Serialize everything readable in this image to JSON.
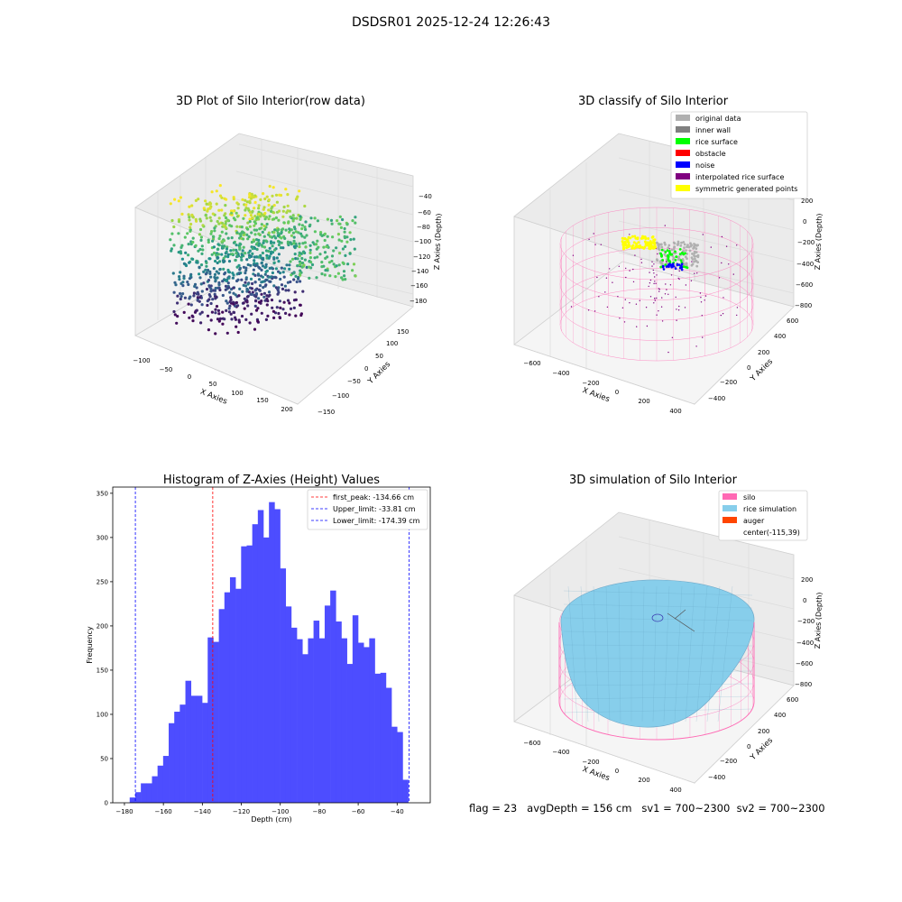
{
  "suptitle": "DSDSR01 2025-12-24 12:26:43",
  "footer": {
    "flag": "flag = 23",
    "avg_depth": "avgDepth = 156 cm",
    "sv1": "sv1 = 700~2300",
    "sv2": "sv2 = 700~2300"
  },
  "colors": {
    "histogram_bar": "#4d4dff",
    "first_peak_line": "#ff0000",
    "limit_line": "#0000ff",
    "silo": "#ff69b4",
    "rice_simulation": "#87ceeb",
    "auger": "#ff4500"
  },
  "chart_data": [
    {
      "type": "scatter",
      "subtype": "3d-scatter",
      "title": "3D Plot of Silo Interior(row data)",
      "xlabel": "X Axies",
      "ylabel": "Y Axies",
      "zlabel": "Z Axies (Depth)",
      "x_ticks": [
        "−100",
        "−50",
        "0",
        "50",
        "100",
        "150",
        "200"
      ],
      "y_ticks": [
        "150",
        "100",
        "50",
        "0",
        "−50",
        "−100",
        "−150"
      ],
      "z_ticks": [
        "−40",
        "−60",
        "−80",
        "−100",
        "−120",
        "−140",
        "−160",
        "−180"
      ],
      "colormap": "viridis"
    },
    {
      "type": "scatter",
      "subtype": "3d-scatter",
      "title": "3D classify of Silo Interior",
      "xlabel": "X Axies",
      "ylabel": "Y Axies",
      "zlabel": "Z Axies (Depth)",
      "x_ticks": [
        "−600",
        "−400",
        "−200",
        "0",
        "200",
        "400"
      ],
      "y_ticks": [
        "600",
        "400",
        "200",
        "0",
        "−200",
        "−400"
      ],
      "z_ticks": [
        "200",
        "0",
        "−200",
        "−400",
        "−600",
        "−800"
      ],
      "legend": [
        {
          "label": "original data",
          "color": "#b0b0b0"
        },
        {
          "label": "inner wall",
          "color": "#808080"
        },
        {
          "label": "rice surface",
          "color": "#00ff00"
        },
        {
          "label": "obstacle",
          "color": "#ff0000"
        },
        {
          "label": "noise",
          "color": "#0000ff"
        },
        {
          "label": "interpolated rice surface",
          "color": "#800080"
        },
        {
          "label": "symmetric generated points",
          "color": "#ffff00"
        }
      ]
    },
    {
      "type": "bar",
      "subtype": "histogram",
      "title": "Histogram of Z-Axies (Height) Values",
      "xlabel": "Depth (cm)",
      "ylabel": "Frequency",
      "xlim": [
        -186,
        -23
      ],
      "ylim": [
        0,
        357
      ],
      "x_ticks": [
        -180,
        -160,
        -140,
        -120,
        -100,
        -80,
        -60,
        -40
      ],
      "x_tick_labels": [
        "−180",
        "−160",
        "−140",
        "−120",
        "−100",
        "−80",
        "−60",
        "−40"
      ],
      "y_ticks": [
        0,
        50,
        100,
        150,
        200,
        250,
        300,
        350
      ],
      "y_tick_labels": [
        "0",
        "50",
        "100",
        "150",
        "200",
        "250",
        "300",
        "350"
      ],
      "bin_start": -177.3,
      "bin_width": 2.86,
      "values": [
        6,
        12,
        22,
        22,
        30,
        42,
        53,
        90,
        103,
        111,
        138,
        121,
        121,
        113,
        187,
        182,
        219,
        238,
        255,
        242,
        290,
        291,
        315,
        331,
        300,
        340,
        332,
        265,
        222,
        198,
        185,
        168,
        186,
        206,
        186,
        223,
        240,
        205,
        186,
        157,
        212,
        181,
        176,
        186,
        146,
        147,
        130,
        86,
        80,
        26
      ],
      "vlines": [
        {
          "label": "first_peak: -134.66 cm",
          "x": -134.66,
          "color": "#ff0000"
        },
        {
          "label": "Upper_limit: -33.81 cm",
          "x": -33.81,
          "color": "#0000ff"
        },
        {
          "label": "Lower_limit: -174.39 cm",
          "x": -174.39,
          "color": "#0000ff"
        }
      ],
      "legend_position": "top-right"
    },
    {
      "type": "area",
      "subtype": "3d-surface",
      "title": "3D simulation of Silo Interior",
      "xlabel": "X Axies",
      "ylabel": "Y Axies",
      "zlabel": "Z Axies (Depth)",
      "x_ticks": [
        "−600",
        "−400",
        "−200",
        "0",
        "200",
        "400"
      ],
      "y_ticks": [
        "600",
        "400",
        "200",
        "0",
        "−200",
        "−400"
      ],
      "z_ticks": [
        "200",
        "0",
        "−200",
        "−400",
        "−600",
        "−800"
      ],
      "legend": [
        {
          "label": "silo",
          "color": "#ff69b4"
        },
        {
          "label": "rice simulation",
          "color": "#87ceeb"
        },
        {
          "label": "auger",
          "color": "#ff4500"
        },
        {
          "label": "center(-115,39)",
          "color": ""
        }
      ]
    }
  ]
}
